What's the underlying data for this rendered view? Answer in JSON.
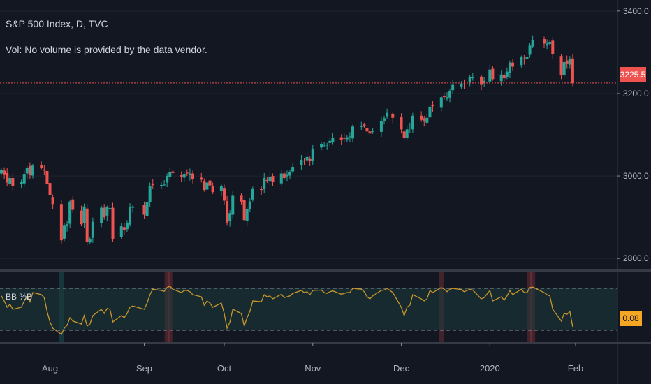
{
  "header": {
    "title": "S&P 500 Index, D, TVC",
    "volume_note": "Vol: No volume is provided by the data vendor."
  },
  "indicator": {
    "label": "BB %B",
    "last_value": "0.08"
  },
  "price_axis": {
    "ticks": [
      "3400.0",
      "3200.0",
      "3000.0",
      "2800.0"
    ],
    "last_price_label": "3225.5"
  },
  "time_axis": {
    "labels": [
      "Aug",
      "Sep",
      "Oct",
      "Nov",
      "Dec",
      "2020",
      "Feb"
    ]
  },
  "colors": {
    "background": "#131722",
    "up": "#26a69a",
    "down": "#ef5350",
    "indicator_line": "#c9962b",
    "band_fill": "#1b3a3a",
    "grid": "#363a45",
    "price_tag": "#ef5350",
    "indicator_tag": "#f5a623"
  },
  "chart_data": [
    {
      "type": "candlestick",
      "title": "S&P 500 Index, D, TVC",
      "ylim": [
        2780,
        3420
      ],
      "last_price": 3225.5,
      "series": [
        {
          "x": [
            "2019-07-15",
            "2019-07-16",
            "2019-07-17",
            "2019-07-18",
            "2019-07-19",
            "2019-07-22",
            "2019-07-23",
            "2019-07-24",
            "2019-07-25",
            "2019-07-26",
            "2019-07-29",
            "2019-07-30",
            "2019-07-31",
            "2019-08-01",
            "2019-08-02",
            "2019-08-05",
            "2019-08-06",
            "2019-08-07",
            "2019-08-08",
            "2019-08-09",
            "2019-08-12",
            "2019-08-13",
            "2019-08-14",
            "2019-08-15",
            "2019-08-16",
            "2019-08-19",
            "2019-08-20",
            "2019-08-21",
            "2019-08-22",
            "2019-08-23",
            "2019-08-26",
            "2019-08-27",
            "2019-08-28",
            "2019-08-29",
            "2019-08-30",
            "2019-09-03",
            "2019-09-04",
            "2019-09-05",
            "2019-09-06",
            "2019-09-09",
            "2019-09-10",
            "2019-09-11",
            "2019-09-12",
            "2019-09-13",
            "2019-09-16",
            "2019-09-17",
            "2019-09-18",
            "2019-09-19",
            "2019-09-20",
            "2019-09-23",
            "2019-09-24",
            "2019-09-25",
            "2019-09-26",
            "2019-09-27",
            "2019-09-30",
            "2019-10-01",
            "2019-10-02",
            "2019-10-03",
            "2019-10-04",
            "2019-10-07",
            "2019-10-08",
            "2019-10-09",
            "2019-10-10",
            "2019-10-11",
            "2019-10-14",
            "2019-10-15",
            "2019-10-16",
            "2019-10-17",
            "2019-10-18",
            "2019-10-21",
            "2019-10-22",
            "2019-10-23",
            "2019-10-24",
            "2019-10-25",
            "2019-10-28",
            "2019-10-29",
            "2019-10-30",
            "2019-10-31",
            "2019-11-01",
            "2019-11-04",
            "2019-11-05",
            "2019-11-06",
            "2019-11-07",
            "2019-11-08",
            "2019-11-11",
            "2019-11-12",
            "2019-11-13",
            "2019-11-14",
            "2019-11-15",
            "2019-11-18",
            "2019-11-19",
            "2019-11-20",
            "2019-11-21",
            "2019-11-22",
            "2019-11-25",
            "2019-11-26",
            "2019-11-27",
            "2019-11-29",
            "2019-12-02",
            "2019-12-03",
            "2019-12-04",
            "2019-12-05",
            "2019-12-06",
            "2019-12-09",
            "2019-12-10",
            "2019-12-11",
            "2019-12-12",
            "2019-12-13",
            "2019-12-16",
            "2019-12-17",
            "2019-12-18",
            "2019-12-19",
            "2019-12-20",
            "2019-12-23",
            "2019-12-24",
            "2019-12-26",
            "2019-12-27",
            "2019-12-30",
            "2019-12-31",
            "2020-01-02",
            "2020-01-03",
            "2020-01-06",
            "2020-01-07",
            "2020-01-08",
            "2020-01-09",
            "2020-01-10",
            "2020-01-13",
            "2020-01-14",
            "2020-01-15",
            "2020-01-16",
            "2020-01-17",
            "2020-01-21",
            "2020-01-22",
            "2020-01-23",
            "2020-01-24",
            "2020-01-27",
            "2020-01-28",
            "2020-01-29",
            "2020-01-30",
            "2020-01-31"
          ],
          "close": [
            3014,
            3004,
            2984,
            2995,
            2976,
            2985,
            3005,
            3019,
            3003,
            3025,
            3020,
            3013,
            2980,
            2953,
            2932,
            2844,
            2881,
            2883,
            2938,
            2918,
            2883,
            2926,
            2840,
            2847,
            2889,
            2923,
            2900,
            2924,
            2922,
            2847,
            2878,
            2869,
            2887,
            2924,
            2926,
            2906,
            2937,
            2976,
            2978,
            2978,
            2979,
            3000,
            3009,
            3007,
            2997,
            3005,
            3006,
            3006,
            2992,
            2991,
            2966,
            2984,
            2977,
            2961,
            2976,
            2940,
            2887,
            2910,
            2952,
            2938,
            2893,
            2919,
            2938,
            2970,
            2966,
            2995,
            2989,
            2997,
            2986,
            3006,
            2995,
            3004,
            3010,
            3022,
            3039,
            3036,
            3046,
            3037,
            3066,
            3078,
            3074,
            3076,
            3085,
            3093,
            3087,
            3091,
            3094,
            3096,
            3120,
            3122,
            3120,
            3108,
            3103,
            3110,
            3133,
            3140,
            3153,
            3141,
            3113,
            3093,
            3113,
            3117,
            3146,
            3136,
            3132,
            3141,
            3168,
            3169,
            3191,
            3192,
            3191,
            3205,
            3221,
            3224,
            3223,
            3240,
            3240,
            3221,
            3231,
            3258,
            3235,
            3246,
            3237,
            3253,
            3275,
            3265,
            3288,
            3283,
            3289,
            3316,
            3330,
            3321,
            3321,
            3325,
            3295,
            3244,
            3276,
            3273,
            3284,
            3225
          ]
        }
      ]
    },
    {
      "type": "line",
      "title": "BB %B",
      "ylim": [
        -0.3,
        1.4
      ],
      "bands": [
        0,
        1
      ],
      "last_value": 0.08,
      "series": [
        {
          "name": "BB %B",
          "values": [
            0.82,
            0.7,
            0.55,
            0.62,
            0.5,
            0.55,
            0.7,
            0.82,
            0.68,
            0.9,
            0.85,
            0.78,
            0.45,
            0.2,
            0.05,
            -0.1,
            0.05,
            0.12,
            0.3,
            0.22,
            0.15,
            0.35,
            0.1,
            0.15,
            0.35,
            0.5,
            0.4,
            0.52,
            0.5,
            0.2,
            0.35,
            0.3,
            0.4,
            0.55,
            0.58,
            0.5,
            0.65,
            0.85,
            0.98,
            0.95,
            0.93,
            1.02,
            1.05,
            0.98,
            0.9,
            0.95,
            0.95,
            0.92,
            0.85,
            0.8,
            0.6,
            0.7,
            0.65,
            0.55,
            0.65,
            0.4,
            0.05,
            0.2,
            0.5,
            0.4,
            0.1,
            0.3,
            0.45,
            0.7,
            0.68,
            0.85,
            0.8,
            0.82,
            0.75,
            0.86,
            0.78,
            0.8,
            0.82,
            0.88,
            0.95,
            0.9,
            0.92,
            0.85,
            0.95,
            0.96,
            0.9,
            0.88,
            0.92,
            0.94,
            0.86,
            0.88,
            0.9,
            0.9,
            1.0,
            0.98,
            0.92,
            0.8,
            0.75,
            0.82,
            0.95,
            0.96,
            1.0,
            0.9,
            0.55,
            0.35,
            0.55,
            0.6,
            0.85,
            0.75,
            0.7,
            0.75,
            0.95,
            0.9,
            1.02,
            0.98,
            0.92,
            0.98,
            1.0,
            0.97,
            0.92,
            0.98,
            0.96,
            0.75,
            0.78,
            0.95,
            0.7,
            0.8,
            0.72,
            0.82,
            0.95,
            0.85,
            0.98,
            0.9,
            0.9,
            1.02,
            1.03,
            0.9,
            0.85,
            0.82,
            0.5,
            0.22,
            0.4,
            0.38,
            0.45,
            0.08
          ]
        }
      ]
    }
  ]
}
